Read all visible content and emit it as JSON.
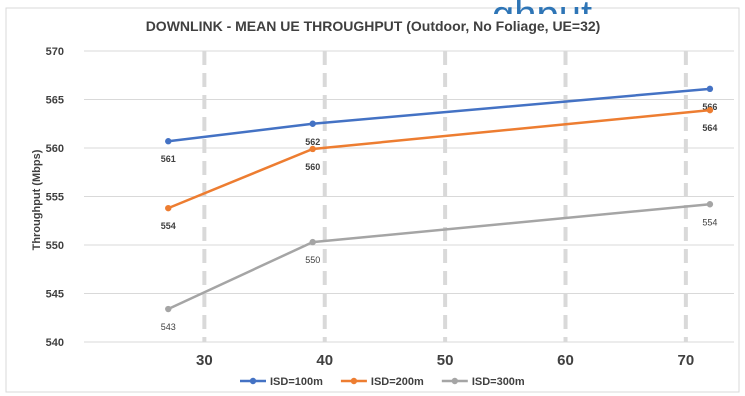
{
  "background_title_fragment": "ghput",
  "chart_data": {
    "type": "line",
    "title": "DOWNLINK - MEAN UE THROUGHPUT (Outdoor, No Foliage, UE=32)",
    "xlabel": "",
    "ylabel": "Throughput (Mbps)",
    "ylim": [
      540,
      570
    ],
    "yticks": [
      540,
      545,
      550,
      555,
      560,
      565,
      570
    ],
    "xlim": [
      20,
      74
    ],
    "xticks": [
      30,
      40,
      50,
      60,
      70
    ],
    "grid": "dashed vertical at x ticks, solid horizontal at y ticks",
    "legend": "bottom",
    "series": [
      {
        "name": "ISD=100m",
        "color": "#4472C4",
        "x": [
          27,
          39,
          72
        ],
        "y": [
          560.7,
          562.5,
          566.1
        ],
        "labels": [
          "561",
          "562",
          "566"
        ],
        "label_bold": true
      },
      {
        "name": "ISD=200m",
        "color": "#ED7D31",
        "x": [
          27,
          39,
          72
        ],
        "y": [
          553.8,
          559.9,
          563.9
        ],
        "labels": [
          "554",
          "560",
          "564"
        ],
        "label_bold": true
      },
      {
        "name": "ISD=300m",
        "color": "#A5A5A5",
        "x": [
          27,
          39,
          72
        ],
        "y": [
          543.4,
          550.3,
          554.2
        ],
        "labels": [
          "543",
          "550",
          "554"
        ],
        "label_bold": false
      }
    ]
  }
}
